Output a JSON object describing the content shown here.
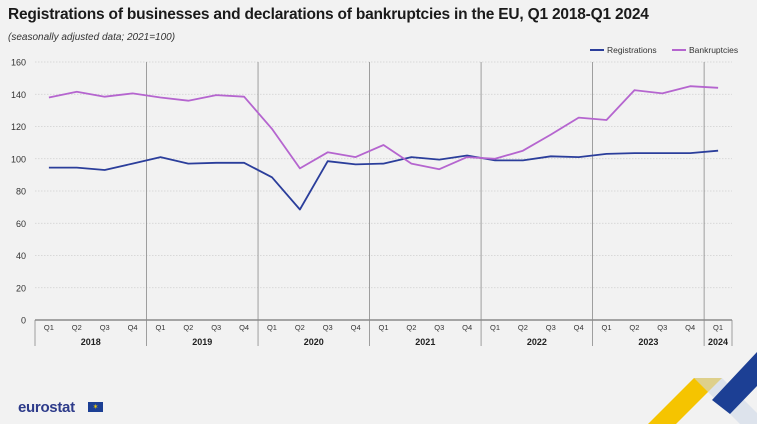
{
  "title": "Registrations of businesses and declarations of bankruptcies in the EU, Q1 2018-Q1 2024",
  "subtitle": "(seasonally adjusted data; 2021=100)",
  "logo": {
    "text": "eurostat",
    "flag_icon": "eu-flag-icon"
  },
  "colors": {
    "registrations": "#2b3e9b",
    "bankruptcies": "#b565cf",
    "grid": "#cfcfcf",
    "divider": "#8a8a8a"
  },
  "chart_data": {
    "type": "line",
    "title": "Registrations of businesses and declarations of bankruptcies in the EU, Q1 2018-Q1 2024",
    "xlabel": "",
    "ylabel": "",
    "ylim": [
      0,
      160
    ],
    "yticks": [
      0,
      20,
      40,
      60,
      80,
      100,
      120,
      140,
      160
    ],
    "grid": true,
    "legend_position": "top-right",
    "quarters": [
      "Q1",
      "Q2",
      "Q3",
      "Q4",
      "Q1",
      "Q2",
      "Q3",
      "Q4",
      "Q1",
      "Q2",
      "Q3",
      "Q4",
      "Q1",
      "Q2",
      "Q3",
      "Q4",
      "Q1",
      "Q2",
      "Q3",
      "Q4",
      "Q1",
      "Q2",
      "Q3",
      "Q4",
      "Q1"
    ],
    "years": [
      "2018",
      "2019",
      "2020",
      "2021",
      "2022",
      "2023",
      "2024"
    ],
    "series": [
      {
        "name": "Registrations",
        "values": [
          94.5,
          94.5,
          93,
          97,
          101,
          97,
          97.5,
          97.5,
          88.5,
          68.5,
          98.5,
          96.5,
          97,
          101,
          99.5,
          102,
          99,
          99,
          101.5,
          101,
          103,
          103.5,
          103.5,
          103.5,
          105
        ]
      },
      {
        "name": "Bankruptcies",
        "values": [
          138,
          141.5,
          138.5,
          140.5,
          138,
          136,
          139.5,
          138.5,
          118.5,
          94,
          104,
          101,
          108.5,
          97,
          93.5,
          101,
          100,
          105,
          115,
          125.5,
          124,
          142.5,
          140.5,
          145,
          144
        ]
      }
    ]
  }
}
